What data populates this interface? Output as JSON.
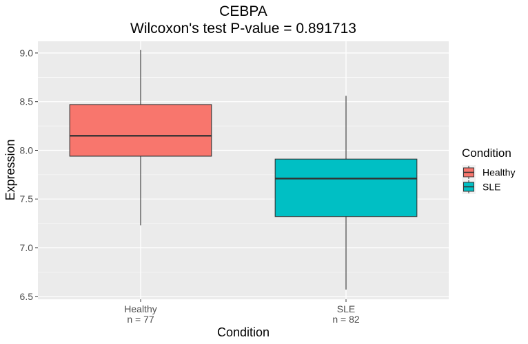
{
  "chart_data": {
    "type": "box",
    "title": "CEBPA",
    "subtitle": "Wilcoxon's test P-value = 0.891713",
    "xlabel": "Condition",
    "ylabel": "Expression",
    "ylim": [
      6.47,
      9.12
    ],
    "yticks": [
      6.5,
      7.0,
      7.5,
      8.0,
      8.5,
      9.0
    ],
    "ytick_labels": [
      "6.5",
      "7.0",
      "7.5",
      "8.0",
      "8.5",
      "9.0"
    ],
    "grid": true,
    "legend": {
      "title": "Condition",
      "position": "right",
      "entries": [
        "Healthy",
        "SLE"
      ]
    },
    "series": [
      {
        "name": "Healthy",
        "category": "Healthy",
        "count_label": "n = 77",
        "color": "#F8766D",
        "whisker_low": 7.23,
        "q1": 7.94,
        "median": 8.15,
        "q3": 8.47,
        "whisker_high": 9.03
      },
      {
        "name": "SLE",
        "category": "SLE",
        "count_label": "n = 82",
        "color": "#00BFC4",
        "whisker_low": 6.57,
        "q1": 7.32,
        "median": 7.71,
        "q3": 7.91,
        "whisker_high": 8.56
      }
    ]
  }
}
